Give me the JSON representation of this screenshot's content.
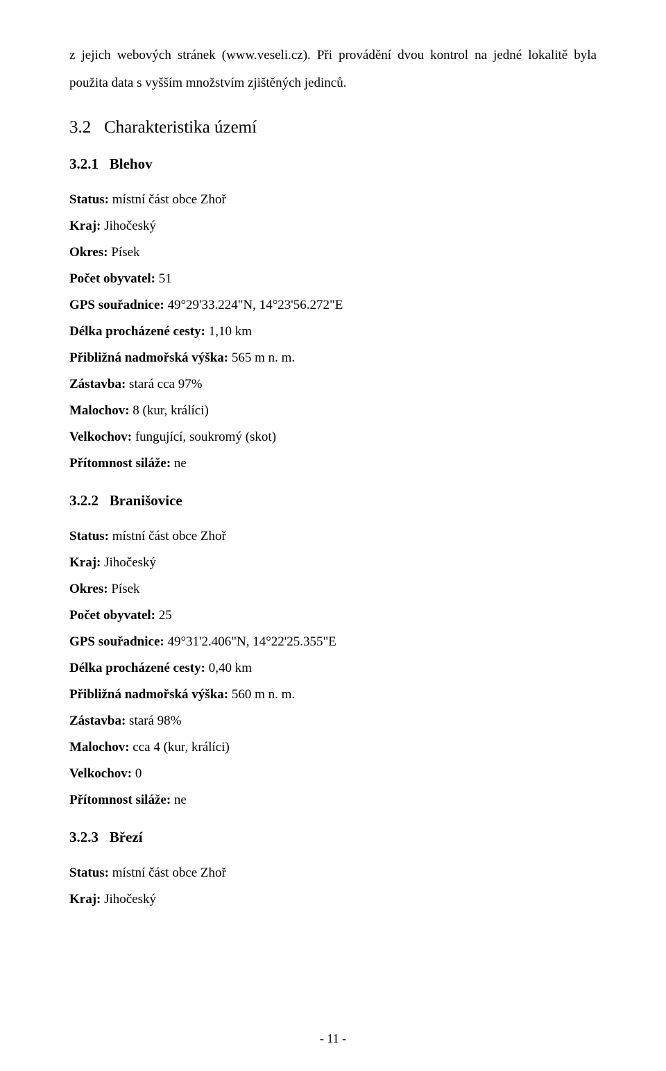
{
  "intro_para": "z jejich webových stránek (www.veseli.cz). Při provádění dvou kontrol na jedné lokalitě byla použita data s vyšším množstvím zjištěných jedinců.",
  "section_h2_num": "3.2",
  "section_h2_title": "Charakteristika území",
  "loc1": {
    "hnum": "3.2.1",
    "htitle": "Blehov",
    "status_label": "Status:",
    "status_val": " místní část obce Zhoř",
    "kraj_label": "Kraj:",
    "kraj_val": " Jihočeský",
    "okres_label": "Okres:",
    "okres_val": " Písek",
    "pocet_label": "Počet obyvatel:",
    "pocet_val": " 51",
    "gps_label": "GPS souřadnice:",
    "gps_val": " 49°29'33.224\"N, 14°23'56.272\"E",
    "delka_label": "Délka procházené cesty:",
    "delka_val": " 1,10 km",
    "vyska_label": "Přibližná nadmořská výška:",
    "vyska_val": " 565 m n. m.",
    "zastavba_label": "Zástavba:",
    "zastavba_val": "  stará cca 97%",
    "malochov_label": "Malochov:",
    "malochov_val": " 8 (kur, králíci)",
    "velk_label": "Velkochov:",
    "velk_val": " fungující, soukromý (skot)",
    "silaz_label": "Přítomnost siláže:",
    "silaz_val": "  ne"
  },
  "loc2": {
    "hnum": "3.2.2",
    "htitle": "Branišovice",
    "status_label": "Status:",
    "status_val": " místní část obce Zhoř",
    "kraj_label": "Kraj:",
    "kraj_val": " Jihočeský",
    "okres_label": "Okres:",
    "okres_val": " Písek",
    "pocet_label": "Počet obyvatel:",
    "pocet_val": " 25",
    "gps_label": "GPS souřadnice:",
    "gps_val": " 49°31'2.406\"N, 14°22'25.355\"E",
    "delka_label": "Délka procházené cesty:",
    "delka_val": " 0,40 km",
    "vyska_label": "Přibližná nadmořská výška:",
    "vyska_val": " 560 m n. m.",
    "zastavba_label": "Zástavba:",
    "zastavba_val": "  stará 98%",
    "malochov_label": "Malochov:",
    "malochov_val": " cca 4 (kur, králíci)",
    "velk_label": "Velkochov:",
    "velk_val": " 0",
    "silaz_label": " Přítomnost siláže:",
    "silaz_val": "  ne"
  },
  "loc3": {
    "hnum": "3.2.3",
    "htitle": "Březí",
    "status_label": "Status:",
    "status_val": " místní část obce Zhoř",
    "kraj_label": "Kraj:",
    "kraj_val": " Jihočeský"
  },
  "page_number": "- 11 -"
}
